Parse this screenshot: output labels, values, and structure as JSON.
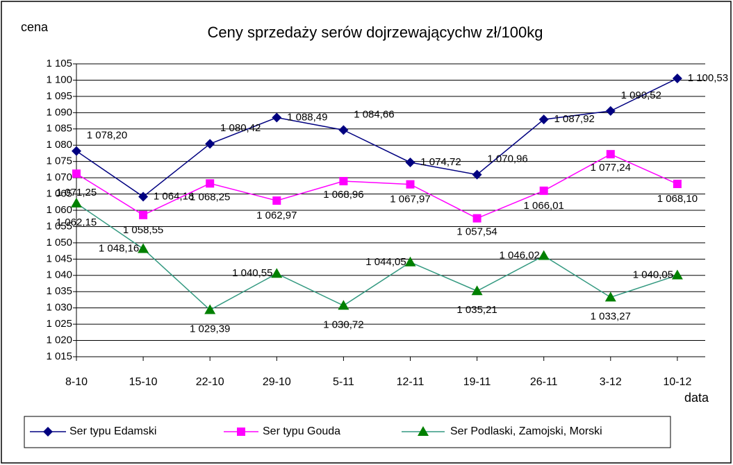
{
  "chart_data": {
    "type": "line",
    "title": "Ceny sprzedaży serów dojrzewającychw zł/100kg",
    "y_label": "cena",
    "x_label": "data",
    "categories": [
      "8-10",
      "15-10",
      "22-10",
      "29-10",
      "5-11",
      "12-11",
      "19-11",
      "26-11",
      "3-12",
      "10-12"
    ],
    "series": [
      {
        "name": "Ser typu Edamski",
        "color": "#000080",
        "marker": "diamond",
        "values": [
          1078.2,
          1064.18,
          1080.42,
          1088.49,
          1084.66,
          1074.72,
          1070.96,
          1087.92,
          1090.52,
          1100.53
        ],
        "value_labels": [
          "1 078,20",
          "1 064,18",
          "1 080,42",
          "1 088,49",
          "1 084,66",
          "1 074,72",
          "1 070,96",
          "1 087,92",
          "1 090,52",
          "1 100,53"
        ]
      },
      {
        "name": "Ser typu Gouda",
        "color": "#ff00ff",
        "marker": "square",
        "values": [
          1071.25,
          1058.55,
          1068.25,
          1062.97,
          1068.96,
          1067.97,
          1057.54,
          1066.01,
          1077.24,
          1068.1
        ],
        "value_labels": [
          "1 071,25",
          "1 058,55",
          "1 068,25",
          "1 062,97",
          "1 068,96",
          "1 067,97",
          "1 057,54",
          "1 066,01",
          "1 077,24",
          "1 068,10"
        ]
      },
      {
        "name": "Ser Podlaski, Zamojski, Morski",
        "color": "#008000",
        "marker": "triangle",
        "values": [
          1062.15,
          1048.16,
          1029.39,
          1040.55,
          1030.72,
          1044.05,
          1035.21,
          1046.02,
          1033.27,
          1040.05
        ],
        "value_labels": [
          "1 062,15",
          "1 048,16",
          "1 029,39",
          "1 040,55",
          "1 030,72",
          "1 044,05",
          "1 035,21",
          "1 046,02",
          "1 033,27",
          "1 040,05"
        ]
      }
    ],
    "ylim": [
      1015,
      1105
    ],
    "yticks": [
      {
        "value": 1015,
        "label": "1 015"
      },
      {
        "value": 1020,
        "label": "1 020"
      },
      {
        "value": 1025,
        "label": "1 025"
      },
      {
        "value": 1030,
        "label": "1 030"
      },
      {
        "value": 1035,
        "label": "1 035"
      },
      {
        "value": 1040,
        "label": "1 040"
      },
      {
        "value": 1045,
        "label": "1 045"
      },
      {
        "value": 1050,
        "label": "1 050"
      },
      {
        "value": 1055,
        "label": "1 055"
      },
      {
        "value": 1060,
        "label": "1 060"
      },
      {
        "value": 1065,
        "label": "1 065"
      },
      {
        "value": 1070,
        "label": "1 070"
      },
      {
        "value": 1075,
        "label": "1 075"
      },
      {
        "value": 1080,
        "label": "1 080"
      },
      {
        "value": 1085,
        "label": "1 085"
      },
      {
        "value": 1090,
        "label": "1 090"
      },
      {
        "value": 1095,
        "label": "1 095"
      },
      {
        "value": 1100,
        "label": "1 100"
      },
      {
        "value": 1105,
        "label": "1 105"
      }
    ],
    "grid": true,
    "legend": "bottom"
  }
}
